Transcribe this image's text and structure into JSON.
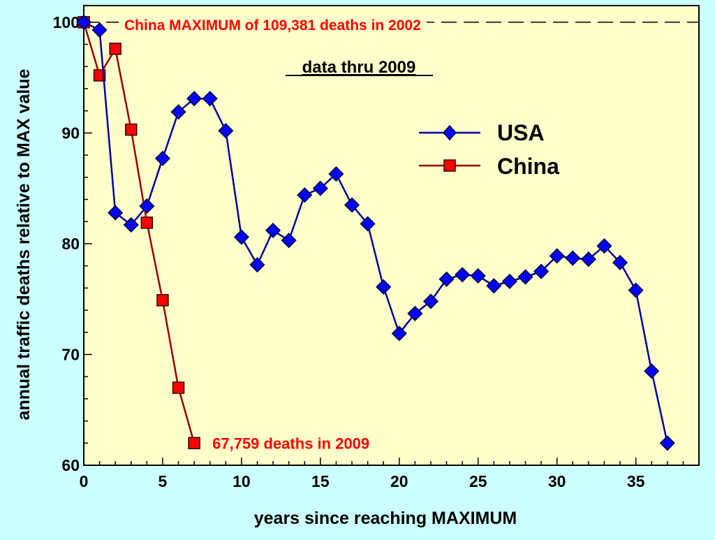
{
  "chart_data": {
    "type": "line",
    "title": "data thru 2009",
    "xlabel": "years since reaching MAXIMUM",
    "ylabel": "annual traffic deaths relative to MAX value",
    "xlim": [
      0,
      39
    ],
    "ylim": [
      60,
      101.5
    ],
    "xticks": [
      0,
      5,
      10,
      15,
      20,
      25,
      30,
      35
    ],
    "yticks": [
      60,
      70,
      80,
      90,
      100
    ],
    "grid": false,
    "legend_position": "upper-right",
    "reference_line": {
      "y": 100,
      "style": "dashed"
    },
    "annotations": [
      {
        "text": "China MAXIMUM of  109,381 deaths in 2002",
        "x": 0,
        "y": 100,
        "color": "#ff0000"
      },
      {
        "text": "67,759  deaths in 2009",
        "x": 7,
        "y": 62,
        "color": "#ff0000"
      }
    ],
    "series": [
      {
        "name": "USA",
        "color": "#000099",
        "marker": "diamond",
        "marker_color": "#0000ff",
        "x": [
          0,
          1,
          2,
          3,
          4,
          5,
          6,
          7,
          8,
          9,
          10,
          11,
          12,
          13,
          14,
          15,
          16,
          17,
          18,
          19,
          20,
          21,
          22,
          23,
          24,
          25,
          26,
          27,
          28,
          29,
          30,
          31,
          32,
          33,
          34,
          35,
          36,
          37
        ],
        "values": [
          100,
          99.3,
          82.8,
          81.7,
          83.4,
          87.7,
          91.9,
          93.1,
          93.1,
          90.2,
          80.6,
          78.1,
          81.2,
          80.3,
          84.4,
          85.0,
          86.3,
          83.5,
          81.8,
          76.1,
          71.9,
          73.7,
          74.8,
          76.8,
          77.2,
          77.1,
          76.2,
          76.6,
          77.0,
          77.5,
          78.9,
          78.7,
          78.6,
          79.8,
          78.3,
          75.8,
          68.5,
          62.0
        ]
      },
      {
        "name": "China",
        "color": "#990000",
        "marker": "square",
        "marker_color": "#ff0000",
        "x": [
          0,
          1,
          2,
          3,
          4,
          5,
          6,
          7
        ],
        "values": [
          100,
          95.2,
          97.6,
          90.3,
          81.9,
          74.9,
          67.0,
          62.0
        ]
      }
    ]
  }
}
